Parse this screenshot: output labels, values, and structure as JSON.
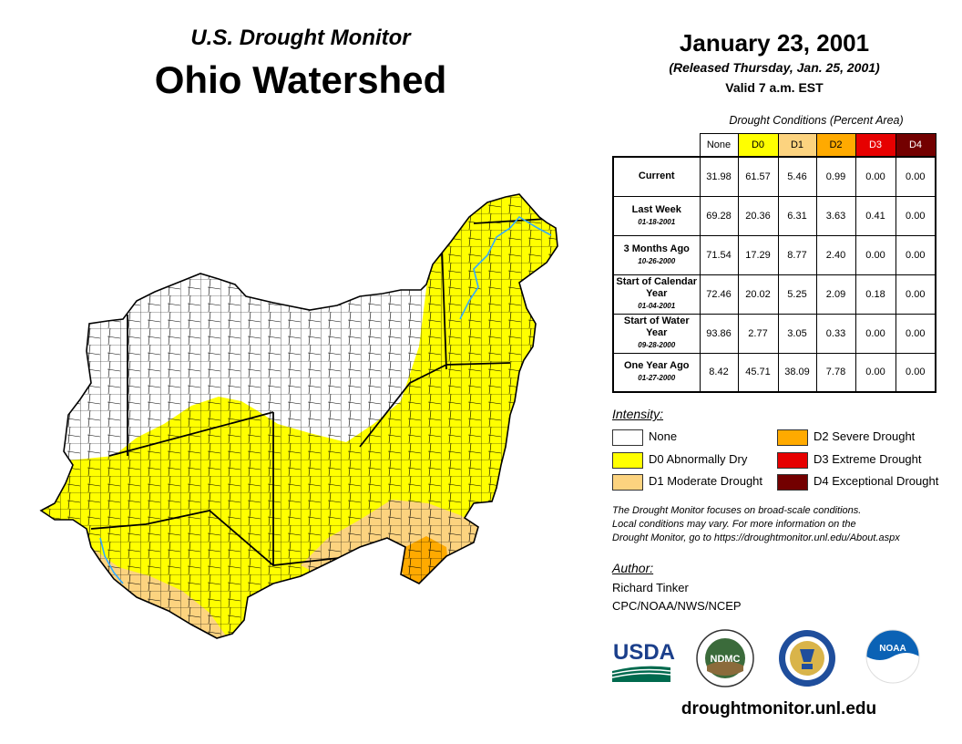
{
  "header": {
    "subtitle": "U.S. Drought Monitor",
    "title": "Ohio Watershed",
    "date": "January 23, 2001",
    "released": "(Released Thursday, Jan. 25, 2001)",
    "valid": "Valid 7 a.m. EST"
  },
  "table": {
    "caption": "Drought Conditions (Percent Area)",
    "columns": [
      "None",
      "D0",
      "D1",
      "D2",
      "D3",
      "D4"
    ],
    "column_colors": [
      "#ffffff",
      "#ffff00",
      "#fcd37f",
      "#ffaa00",
      "#e60000",
      "#730000"
    ],
    "rows": [
      {
        "label": "Current",
        "date": "",
        "values": [
          "31.98",
          "61.57",
          "5.46",
          "0.99",
          "0.00",
          "0.00"
        ]
      },
      {
        "label": "Last Week",
        "date": "01-18-2001",
        "values": [
          "69.28",
          "20.36",
          "6.31",
          "3.63",
          "0.41",
          "0.00"
        ]
      },
      {
        "label": "3 Months Ago",
        "date": "10-26-2000",
        "values": [
          "71.54",
          "17.29",
          "8.77",
          "2.40",
          "0.00",
          "0.00"
        ]
      },
      {
        "label": "Start of Calendar Year",
        "date": "01-04-2001",
        "values": [
          "72.46",
          "20.02",
          "5.25",
          "2.09",
          "0.18",
          "0.00"
        ]
      },
      {
        "label": "Start of Water Year",
        "date": "09-28-2000",
        "values": [
          "93.86",
          "2.77",
          "3.05",
          "0.33",
          "0.00",
          "0.00"
        ]
      },
      {
        "label": "One Year Ago",
        "date": "01-27-2000",
        "values": [
          "8.42",
          "45.71",
          "38.09",
          "7.78",
          "0.00",
          "0.00"
        ]
      }
    ]
  },
  "legend": {
    "title": "Intensity:",
    "items": [
      {
        "label": "None",
        "color": "#ffffff"
      },
      {
        "label": "D0 Abnormally Dry",
        "color": "#ffff00"
      },
      {
        "label": "D1 Moderate Drought",
        "color": "#fcd37f"
      },
      {
        "label": "D2 Severe Drought",
        "color": "#ffaa00"
      },
      {
        "label": "D3 Extreme Drought",
        "color": "#e60000"
      },
      {
        "label": "D4 Exceptional Drought",
        "color": "#730000"
      }
    ]
  },
  "note": {
    "line1": "The Drought Monitor focuses on broad-scale conditions.",
    "line2": "Local conditions may vary. For more information on the",
    "line3": "Drought Monitor, go to https://droughtmonitor.unl.edu/About.aspx"
  },
  "author": {
    "label": "Author:",
    "name": "Richard Tinker",
    "org": "CPC/NOAA/NWS/NCEP"
  },
  "logos": {
    "usda": "USDA",
    "ndmc": "NDMC",
    "noaa": "NOAA"
  },
  "website": "droughtmonitor.unl.edu",
  "map": {
    "region": "Ohio Watershed",
    "colors": {
      "none": "#ffffff",
      "d0": "#ffff00",
      "d1": "#fcd37f",
      "d2": "#ffaa00",
      "river": "#33aaff"
    }
  }
}
